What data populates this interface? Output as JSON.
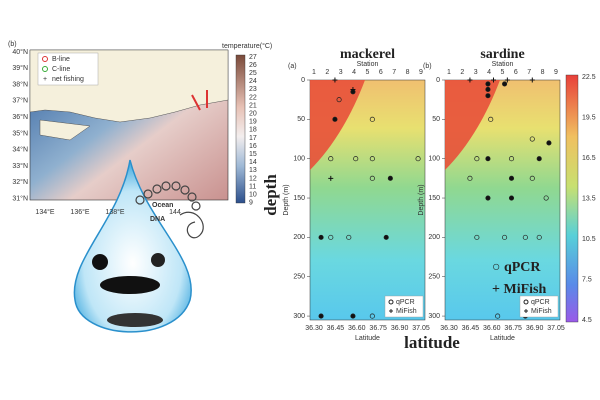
{
  "map": {
    "label": "(b)",
    "colorbar_title": "temperature(°C)",
    "lat_labels": [
      "40°N",
      "39°N",
      "38°N",
      "37°N",
      "36°N",
      "35°N",
      "34°N",
      "33°N",
      "32°N",
      "31°N"
    ],
    "lon_labels": [
      "134°E",
      "136°E",
      "138°E",
      "144"
    ],
    "colorbar_labels": [
      "27",
      "26",
      "25",
      "24",
      "23",
      "22",
      "21",
      "20",
      "19",
      "18",
      "17",
      "16",
      "15",
      "14",
      "13",
      "12",
      "11",
      "10",
      "9"
    ],
    "legend": [
      "B-line",
      "C-line",
      "net fishing"
    ],
    "illustration_text": [
      "Ocean",
      "DNA"
    ]
  },
  "profiles": {
    "station_title": "Station",
    "stations": [
      "1",
      "2",
      "3",
      "4",
      "5",
      "6",
      "7",
      "8",
      "9"
    ],
    "y_title": "Depth (m)",
    "x_title": "Latitude",
    "depth_ticks": [
      0,
      50,
      100,
      150,
      200,
      250,
      300
    ],
    "depth_range": [
      0,
      305
    ],
    "lat_ticks": [
      "36.30",
      "36.45",
      "36.60",
      "36.75",
      "36.90",
      "37.05"
    ],
    "lat_range": [
      36.27,
      37.1
    ],
    "legend": [
      "qPCR",
      "MiFish"
    ],
    "colorbar_labels": [
      "22.5",
      "19.5",
      "16.5",
      "13.5",
      "10.5",
      "7.5",
      "4.5"
    ],
    "panels": [
      {
        "label": "(a)",
        "title": "mackerel",
        "open": [
          [
            36.48,
            25
          ],
          [
            36.72,
            50
          ],
          [
            36.72,
            100
          ],
          [
            36.42,
            100
          ],
          [
            36.6,
            100
          ],
          [
            37.05,
            100
          ],
          [
            36.72,
            125
          ],
          [
            36.42,
            200
          ],
          [
            36.55,
            200
          ],
          [
            36.72,
            300
          ]
        ],
        "filled": [
          [
            36.58,
            15
          ],
          [
            36.45,
            50
          ],
          [
            36.85,
            125
          ],
          [
            36.35,
            200
          ],
          [
            36.82,
            200
          ],
          [
            36.35,
            300
          ],
          [
            36.58,
            300
          ]
        ],
        "plus": [
          [
            36.45,
            0
          ],
          [
            36.58,
            12
          ],
          [
            36.42,
            125
          ]
        ]
      },
      {
        "label": "(b)",
        "title": "sardine",
        "open": [
          [
            36.6,
            50
          ],
          [
            36.9,
            75
          ],
          [
            36.5,
            100
          ],
          [
            36.75,
            100
          ],
          [
            36.45,
            125
          ],
          [
            36.9,
            125
          ],
          [
            37.0,
            150
          ],
          [
            36.5,
            200
          ],
          [
            36.7,
            200
          ],
          [
            36.85,
            200
          ],
          [
            36.95,
            200
          ],
          [
            36.65,
            300
          ]
        ],
        "filled": [
          [
            36.58,
            5
          ],
          [
            36.58,
            12
          ],
          [
            36.58,
            20
          ],
          [
            36.7,
            5
          ],
          [
            36.58,
            100
          ],
          [
            36.75,
            125
          ],
          [
            36.58,
            150
          ],
          [
            36.75,
            150
          ],
          [
            36.95,
            100
          ],
          [
            37.02,
            80
          ],
          [
            36.85,
            300
          ]
        ],
        "plus": [
          [
            36.62,
            0
          ],
          [
            36.72,
            0
          ],
          [
            36.9,
            0
          ],
          [
            36.45,
            0
          ]
        ]
      }
    ],
    "axis_title": "depth",
    "x_axis_title": "latitude",
    "key": [
      "○ qPCR",
      "+ MiFish"
    ]
  }
}
